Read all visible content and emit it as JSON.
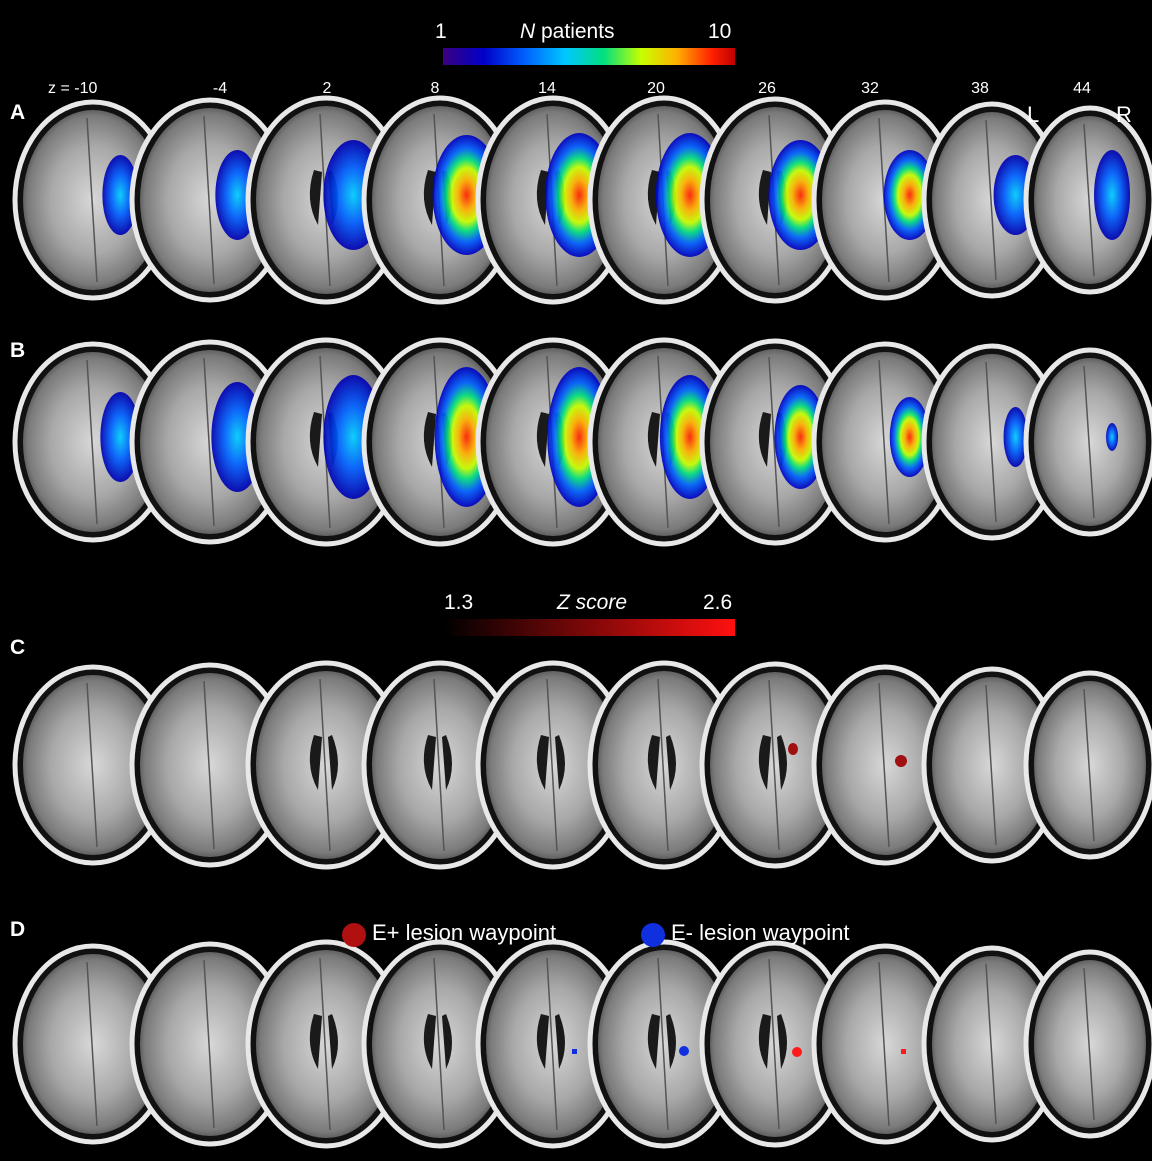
{
  "colorbar_patients": {
    "min_label": "1",
    "title_italic": "N",
    "title_rest": " patients",
    "max_label": "10"
  },
  "colorbar_z": {
    "min_label": "1.3",
    "title": "Z score",
    "max_label": "2.6"
  },
  "z_prefix": "z = ",
  "z_levels": [
    "-10",
    "-4",
    "2",
    "8",
    "14",
    "20",
    "26",
    "32",
    "38",
    "44"
  ],
  "hemisphere_labels": {
    "left": "L",
    "right": "R"
  },
  "panels": [
    {
      "label": "A",
      "overlay": "lesion-overlap"
    },
    {
      "label": "B",
      "overlay": "lesion-overlap"
    },
    {
      "label": "C",
      "overlay": "z-score"
    },
    {
      "label": "D",
      "overlay": "waypoints"
    }
  ],
  "legend": {
    "e_plus": {
      "label": "E+ lesion waypoint",
      "color": "#b01010"
    },
    "e_minus": {
      "label": "E- lesion waypoint",
      "color": "#1030e0"
    }
  },
  "colors": {
    "background": "#000000",
    "lesion_cmap": [
      "#3a0080",
      "#0000c8",
      "#0060ff",
      "#00c8ff",
      "#00e080",
      "#c8ff00",
      "#ffb000",
      "#ff2000",
      "#c00000"
    ],
    "z_cmap": [
      "#000000",
      "#ff1010"
    ]
  }
}
